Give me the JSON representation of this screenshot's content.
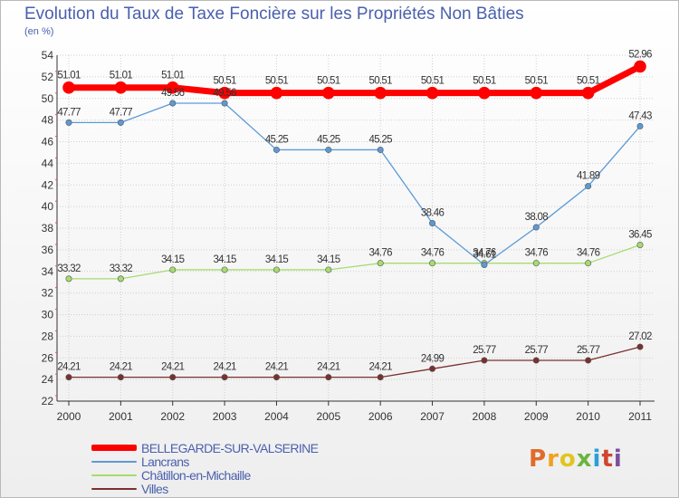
{
  "title": "Evolution du Taux de Taxe Foncière sur les Propriétés Non Bâties",
  "unit_label": "(en %)",
  "logo": {
    "text": "Proxiti",
    "colors": [
      "#e06b2a",
      "#f0a21f",
      "#e2c51c",
      "#6cb43f",
      "#2c9fd7",
      "#d0462f",
      "#7c4f9e"
    ]
  },
  "colors": {
    "text": "#4a60ad",
    "grid": "#cfcfcf",
    "axis": "#333333"
  },
  "chart_data": {
    "type": "line",
    "categories": [
      "2000",
      "2001",
      "2002",
      "2003",
      "2004",
      "2005",
      "2006",
      "2007",
      "2008",
      "2009",
      "2010",
      "2011"
    ],
    "ylim": [
      22,
      54
    ],
    "yticks": [
      22,
      24,
      26,
      28,
      30,
      32,
      34,
      36,
      38,
      40,
      42,
      44,
      46,
      48,
      50,
      52,
      54
    ],
    "grid": true,
    "legend": "bottom-left",
    "series": [
      {
        "name": "BELLEGARDE-SUR-VALSERINE",
        "color": "#ff0000",
        "values": [
          51.01,
          51.01,
          51.01,
          50.51,
          50.51,
          50.51,
          50.51,
          50.51,
          50.51,
          50.51,
          50.51,
          52.96
        ],
        "labels": [
          "51.01",
          "51.01",
          "51.01",
          "50.51",
          "50.51",
          "50.51",
          "50.51",
          "50.51",
          "50.51",
          "50.51",
          "50.51",
          "52.96"
        ]
      },
      {
        "name": "Lancrans",
        "color": "#5c9ad6",
        "values": [
          47.77,
          47.77,
          49.56,
          49.56,
          45.25,
          45.25,
          45.25,
          38.46,
          34.61,
          38.08,
          41.89,
          47.43
        ],
        "labels": [
          "47.77",
          "47.77",
          "49.56",
          "49.56",
          "45.25",
          "45.25",
          "45.25",
          "38.46",
          "34.61",
          "38.08",
          "41.89",
          "47.43"
        ]
      },
      {
        "name": "Châtillon-en-Michaille",
        "color": "#a6dc6e",
        "values": [
          33.32,
          33.32,
          34.15,
          34.15,
          34.15,
          34.15,
          34.76,
          34.76,
          34.76,
          34.76,
          34.76,
          36.45
        ],
        "labels": [
          "33.32",
          "33.32",
          "34.15",
          "34.15",
          "34.15",
          "34.15",
          "34.76",
          "34.76",
          "34.76",
          "34.76",
          "34.76",
          "36.45"
        ]
      },
      {
        "name": "Villes",
        "color": "#7b3030",
        "values": [
          24.21,
          24.21,
          24.21,
          24.21,
          24.21,
          24.21,
          24.21,
          24.99,
          25.77,
          25.77,
          25.77,
          27.02
        ],
        "labels": [
          "24.21",
          "24.21",
          "24.21",
          "24.21",
          "24.21",
          "24.21",
          "24.21",
          "24.99",
          "25.77",
          "25.77",
          "25.77",
          "27.02"
        ]
      }
    ]
  }
}
